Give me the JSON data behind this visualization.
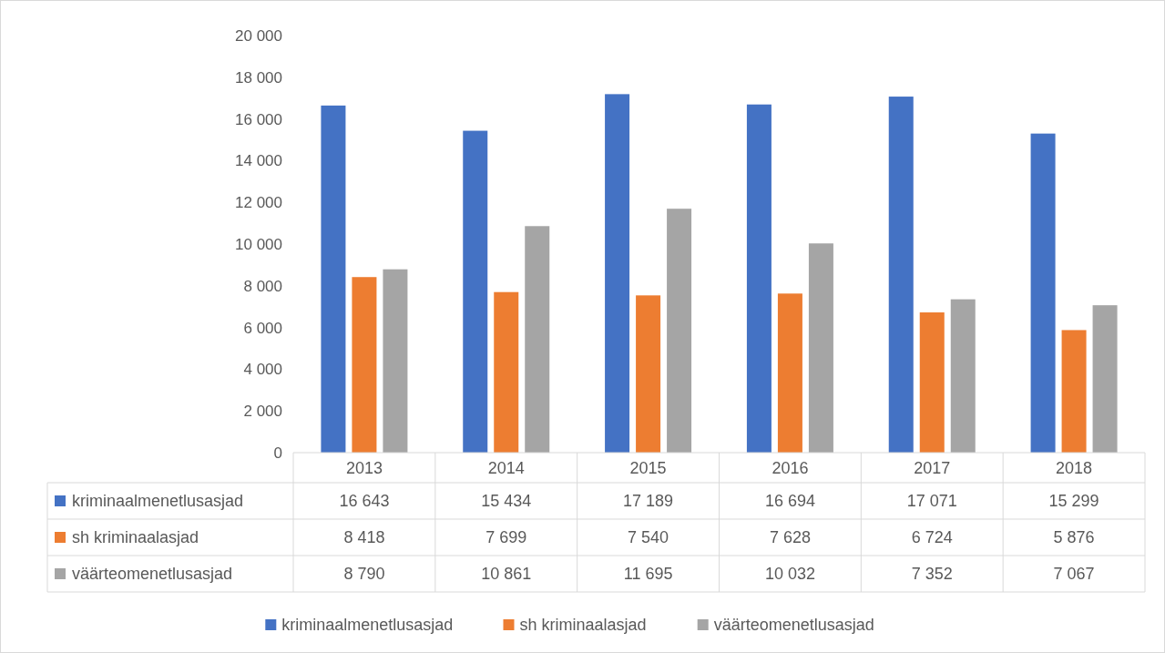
{
  "chart_data": {
    "type": "bar",
    "categories": [
      "2013",
      "2014",
      "2015",
      "2016",
      "2017",
      "2018"
    ],
    "series": [
      {
        "name": "kriminaalmenetlusasjad",
        "color": "#4472c4",
        "values": [
          16643,
          15434,
          17189,
          16694,
          17071,
          15299
        ],
        "value_labels": [
          "16 643",
          "15 434",
          "17 189",
          "16 694",
          "17 071",
          "15 299"
        ]
      },
      {
        "name": "sh kriminaalasjad",
        "color": "#ed7d31",
        "values": [
          8418,
          7699,
          7540,
          7628,
          6724,
          5876
        ],
        "value_labels": [
          "8 418",
          "7 699",
          "7 540",
          "7 628",
          "6 724",
          "5 876"
        ]
      },
      {
        "name": "väärteomenetlusasjad",
        "color": "#a5a5a5",
        "values": [
          8790,
          10861,
          11695,
          10032,
          7352,
          7067
        ],
        "value_labels": [
          "8 790",
          "10 861",
          "11 695",
          "10 032",
          "7 352",
          "7 067"
        ]
      }
    ],
    "ylim": [
      0,
      20000
    ],
    "yticks": [
      {
        "value": 0,
        "label": "0"
      },
      {
        "value": 2000,
        "label": "2 000"
      },
      {
        "value": 4000,
        "label": "4 000"
      },
      {
        "value": 6000,
        "label": "6 000"
      },
      {
        "value": 8000,
        "label": "8 000"
      },
      {
        "value": 10000,
        "label": "10 000"
      },
      {
        "value": 12000,
        "label": "12 000"
      },
      {
        "value": 14000,
        "label": "14 000"
      },
      {
        "value": 16000,
        "label": "16 000"
      },
      {
        "value": 18000,
        "label": "18 000"
      },
      {
        "value": 20000,
        "label": "20 000"
      }
    ],
    "legend": "bottom"
  }
}
